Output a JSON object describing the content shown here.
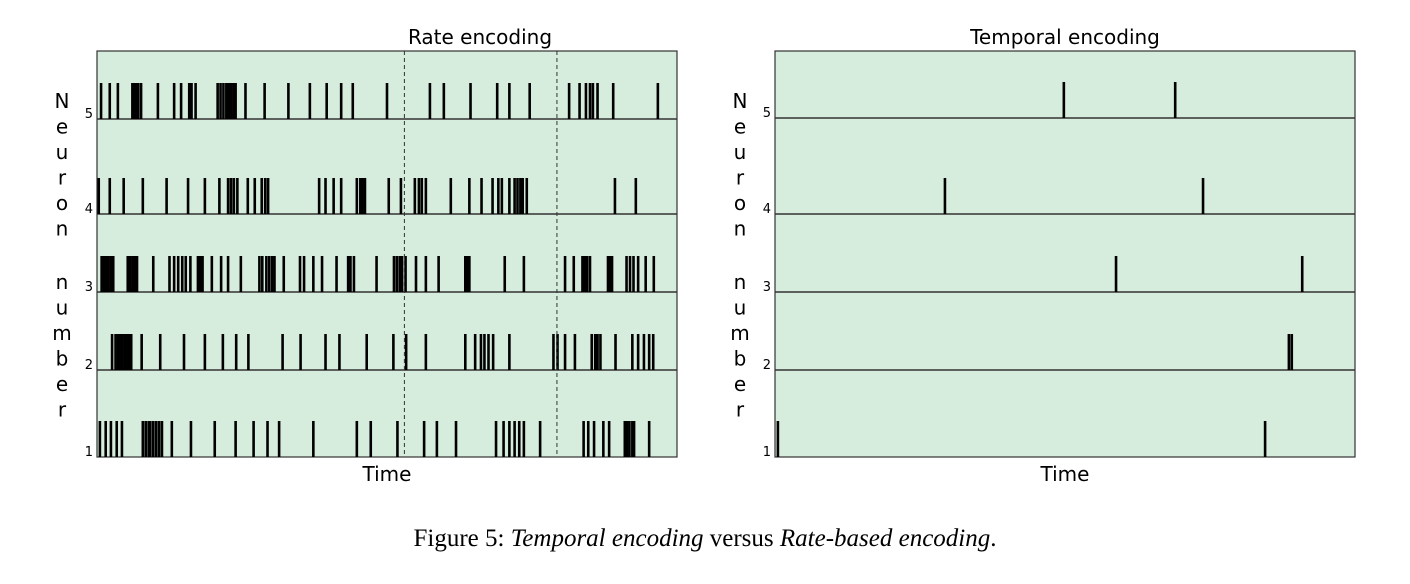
{
  "caption": {
    "prefix": "Figure 5: ",
    "term1": "Temporal encoding",
    "middle": " versus ",
    "term2": "Rate-based encoding",
    "suffix": "."
  },
  "colors": {
    "panel_bg": "#d6ecdc",
    "spike": "#000000",
    "divider": "#333333"
  },
  "chart_data": [
    {
      "type": "raster",
      "title": "Rate encoding",
      "xlabel": "Time",
      "ylabel": "Neuron number",
      "xlim": [
        0,
        100
      ],
      "grid": false,
      "dashed_markers": [
        53.0,
        79.3
      ],
      "rows": [
        {
          "neuron": "5",
          "spikes": [
            0.7,
            2.2,
            3.6,
            6.1,
            6.4,
            6.7,
            7.1,
            7.6,
            10.5,
            13.3,
            14.5,
            15.9,
            16.3,
            17.0,
            20.8,
            21.3,
            21.8,
            22.3,
            22.6,
            22.9,
            23.2,
            23.6,
            23.9,
            25.6,
            28.9,
            33.0,
            36.7,
            39.6,
            42.1,
            44.1,
            50.0,
            57.4,
            59.8,
            64.4,
            69.0,
            71.1,
            74.6,
            81.4,
            83.2,
            84.3,
            85.0,
            85.5,
            86.3,
            89.0,
            96.7
          ]
        },
        {
          "neuron": "4",
          "spikes": [
            0.3,
            2.2,
            4.6,
            7.9,
            12.0,
            15.7,
            18.6,
            21.1,
            22.6,
            23.1,
            23.6,
            24.2,
            26.0,
            27.2,
            28.4,
            29.0,
            29.5,
            38.3,
            39.4,
            40.8,
            42.1,
            44.8,
            45.4,
            45.8,
            46.2,
            50.3,
            52.4,
            54.8,
            55.5,
            56.0,
            56.7,
            61.0,
            64.2,
            66.3,
            68.2,
            69.2,
            69.8,
            71.1,
            72.0,
            72.5,
            73.0,
            73.4,
            74.1,
            89.3,
            92.9
          ]
        },
        {
          "neuron": "3",
          "spikes": [
            0.8,
            1.2,
            1.6,
            2.0,
            2.4,
            2.8,
            5.3,
            5.7,
            6.1,
            6.5,
            6.9,
            9.7,
            12.5,
            13.3,
            14.0,
            14.7,
            15.3,
            16.1,
            17.4,
            17.8,
            18.2,
            19.8,
            21.4,
            22.6,
            24.8,
            28.0,
            28.5,
            29.2,
            29.7,
            30.2,
            30.6,
            32.2,
            35.0,
            35.7,
            37.3,
            38.8,
            41.3,
            43.3,
            43.7,
            44.3,
            48.2,
            51.2,
            51.7,
            52.2,
            52.6,
            53.2,
            55.0,
            56.7,
            58.9,
            63.5,
            63.9,
            64.2,
            70.3,
            73.6,
            80.7,
            82.2,
            83.7,
            84.1,
            84.5,
            85.0,
            88.1,
            88.5,
            88.8,
            91.3,
            91.9,
            92.5,
            93.3,
            94.6,
            96.0
          ]
        },
        {
          "neuron": "2",
          "spikes": [
            2.6,
            3.2,
            3.6,
            4.0,
            4.4,
            4.8,
            5.2,
            5.5,
            5.9,
            7.7,
            10.9,
            15.0,
            18.6,
            21.7,
            24.0,
            26.1,
            32.0,
            35.1,
            39.4,
            41.8,
            46.5,
            51.1,
            53.3,
            56.7,
            63.5,
            65.2,
            66.2,
            66.8,
            67.5,
            68.3,
            71.1,
            78.7,
            79.4,
            80.7,
            82.4,
            85.3,
            85.9,
            86.3,
            86.8,
            89.4,
            92.3,
            93.3,
            94.3,
            95.2,
            95.9
          ]
        },
        {
          "neuron": "1",
          "spikes": [
            0.5,
            1.5,
            2.4,
            3.4,
            4.3,
            7.9,
            8.4,
            8.9,
            9.2,
            9.7,
            10.2,
            10.7,
            11.2,
            12.9,
            16.2,
            20.3,
            23.9,
            27.0,
            29.4,
            31.4,
            37.3,
            44.8,
            47.2,
            51.8,
            56.4,
            58.6,
            61.9,
            68.8,
            70.1,
            71.1,
            72.0,
            72.8,
            73.6,
            76.4,
            83.9,
            84.7,
            85.7,
            87.3,
            88.3,
            91.0,
            91.4,
            91.8,
            92.3,
            92.6,
            95.2
          ]
        }
      ]
    },
    {
      "type": "raster",
      "title": "Temporal encoding",
      "xlabel": "Time",
      "ylabel": "Neuron number",
      "xlim": [
        0,
        100
      ],
      "grid": false,
      "dashed_markers": [],
      "rows": [
        {
          "neuron": "5",
          "spikes": [
            49.8,
            69.0
          ]
        },
        {
          "neuron": "4",
          "spikes": [
            29.3,
            73.8
          ]
        },
        {
          "neuron": "3",
          "spikes": [
            58.8,
            90.9
          ]
        },
        {
          "neuron": "2",
          "spikes": [
            88.6,
            89.1
          ]
        },
        {
          "neuron": "1",
          "spikes": [
            0.5,
            84.5
          ]
        }
      ]
    }
  ]
}
